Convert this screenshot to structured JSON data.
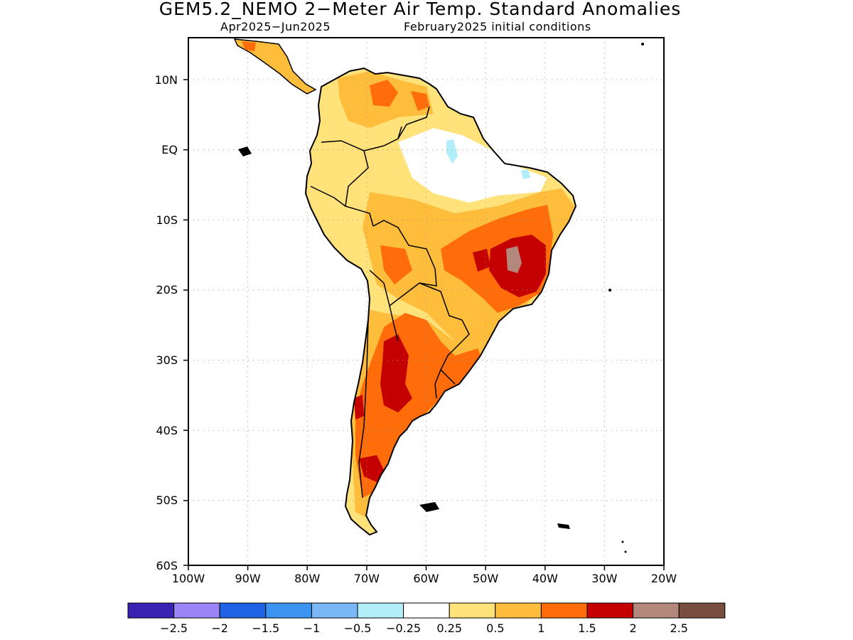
{
  "title": "GEM5.2_NEMO 2−Meter Air Temp. Standard Anomalies",
  "subtitle_left": "Apr2025−Jun2025",
  "subtitle_right": "February2025 initial conditions",
  "lat_labels": [
    "10N",
    "EQ",
    "10S",
    "20S",
    "30S",
    "40S",
    "50S",
    "60S"
  ],
  "lon_labels": [
    "100W",
    "90W",
    "80W",
    "70W",
    "60W",
    "50W",
    "40W",
    "30W",
    "20W"
  ],
  "colorbar": {
    "colors": [
      "#3a23b3",
      "#9b85f6",
      "#1f63e6",
      "#3a94f0",
      "#7ab7f7",
      "#b2eefa",
      "#ffffff",
      "#ffe27a",
      "#ffbd3c",
      "#ff6d0a",
      "#c40000",
      "#b4877c",
      "#7a4e3f"
    ],
    "labels": [
      "−2.5",
      "−2",
      "−1.5",
      "−1",
      "−0.5",
      "−0.25",
      "0.25",
      "0.5",
      "1",
      "1.5",
      "2",
      "2.5"
    ]
  }
}
